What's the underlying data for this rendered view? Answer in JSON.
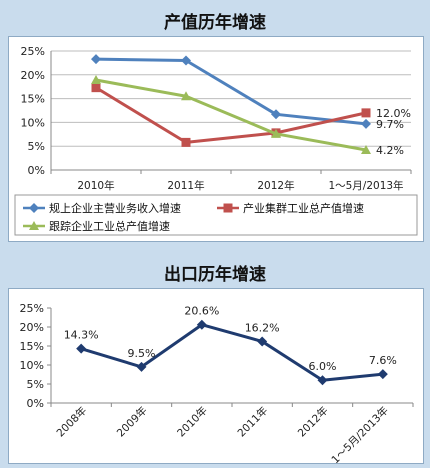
{
  "chart_data": [
    {
      "type": "line",
      "title": "产值历年增速",
      "categories": [
        "2010年",
        "2011年",
        "2012年",
        "1～5月/2013年"
      ],
      "yticks": [
        "0%",
        "5%",
        "10%",
        "15%",
        "20%",
        "25%"
      ],
      "ylim": [
        0,
        25
      ],
      "grid": true,
      "legend_position": "bottom",
      "series": [
        {
          "name": "规上企业主营业务收入增速",
          "values": [
            23.3,
            23.0,
            11.7,
            9.7
          ],
          "color": "#4f81bd",
          "marker": "diamond"
        },
        {
          "name": "产业集群工业总产值增速",
          "values": [
            17.3,
            5.8,
            7.8,
            12.0
          ],
          "color": "#c0504d",
          "marker": "square"
        },
        {
          "name": "跟踪企业工业总产值增速",
          "values": [
            18.9,
            15.5,
            7.6,
            4.2
          ],
          "color": "#9bbb59",
          "marker": "triangle"
        }
      ],
      "data_labels": [
        {
          "series": 1,
          "index": 3,
          "text": "12.0%"
        },
        {
          "series": 0,
          "index": 3,
          "text": "9.7%"
        },
        {
          "series": 2,
          "index": 3,
          "text": "4.2%"
        }
      ]
    },
    {
      "type": "line",
      "title": "出口历年增速",
      "categories": [
        "2008年",
        "2009年",
        "2010年",
        "2011年",
        "2012年",
        "1～5月/2013年"
      ],
      "yticks": [
        "0%",
        "5%",
        "10%",
        "15%",
        "20%",
        "25%"
      ],
      "ylim": [
        0,
        25
      ],
      "grid": false,
      "series": [
        {
          "values": [
            14.3,
            9.5,
            20.6,
            16.2,
            6.0,
            7.6
          ],
          "color": "#1f3b6f",
          "marker": "diamond"
        }
      ],
      "data_labels": [
        "14.3%",
        "9.5%",
        "20.6%",
        "16.2%",
        "6.0%",
        "7.6%"
      ]
    }
  ]
}
